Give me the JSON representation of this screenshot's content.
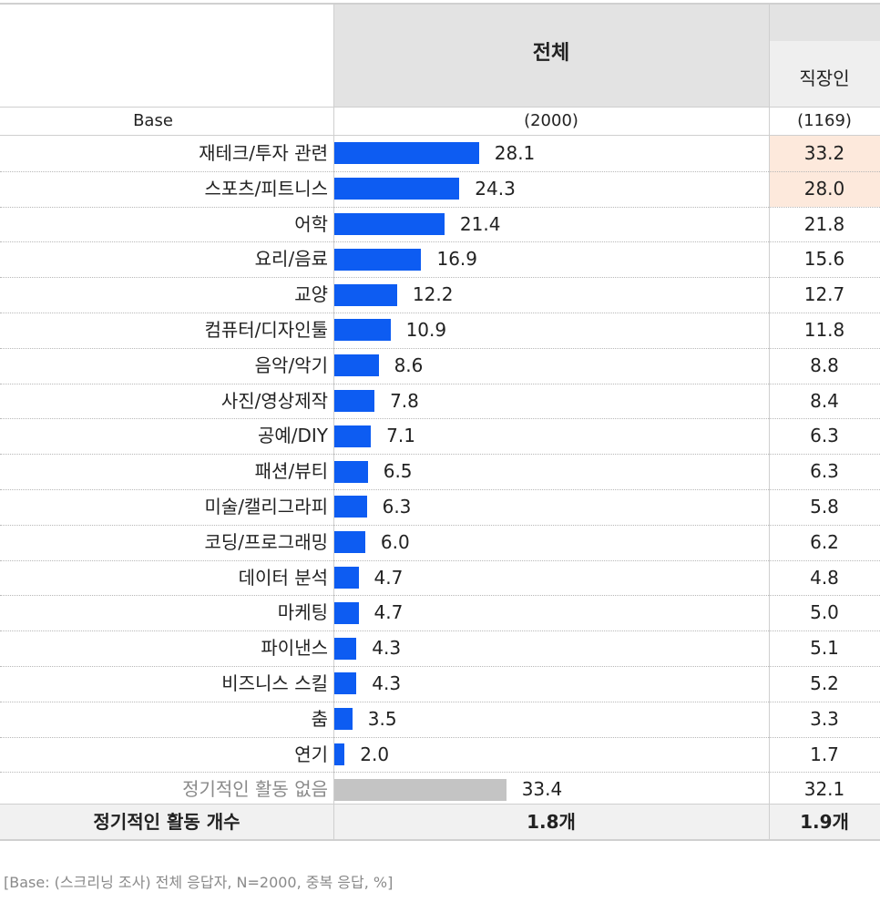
{
  "header": {
    "total_label": "전체",
    "sub_label": "직장인",
    "base_label": "Base",
    "base_total": "(2000)",
    "base_sub": "(1169)"
  },
  "chart_data": {
    "type": "bar",
    "orientation": "horizontal",
    "unit": "%",
    "categories": [
      "재테크/투자 관련",
      "스포츠/피트니스",
      "어학",
      "요리/음료",
      "교양",
      "컴퓨터/디자인툴",
      "음악/악기",
      "사진/영상제작",
      "공예/DIY",
      "패션/뷰티",
      "미술/캘리그라피",
      "코딩/프로그래밍",
      "데이터 분석",
      "마케팅",
      "파이낸스",
      "비즈니스 스킬",
      "춤",
      "연기",
      "정기적인 활동 없음"
    ],
    "series": [
      {
        "name": "전체",
        "values": [
          28.1,
          24.3,
          21.4,
          16.9,
          12.2,
          10.9,
          8.6,
          7.8,
          7.1,
          6.5,
          6.3,
          6.0,
          4.7,
          4.7,
          4.3,
          4.3,
          3.5,
          2.0,
          33.4
        ]
      },
      {
        "name": "직장인",
        "values": [
          33.2,
          28.0,
          21.8,
          15.6,
          12.7,
          11.8,
          8.8,
          8.4,
          6.3,
          6.3,
          5.8,
          6.2,
          4.8,
          5.0,
          5.1,
          5.2,
          3.3,
          1.7,
          32.1
        ]
      }
    ],
    "highlighted_rows_sub": [
      0,
      1
    ],
    "muted_row": 18,
    "colors": {
      "bar": "#0d5cf2",
      "bar_muted": "#c4c4c4",
      "highlight": "#fde9dc"
    }
  },
  "footer": {
    "label": "정기적인 활동 개수",
    "total": "1.8개",
    "sub": "1.9개"
  },
  "note": "[Base: (스크리닝 조사) 전체 응답자, N=2000, 중복 응답, %]"
}
